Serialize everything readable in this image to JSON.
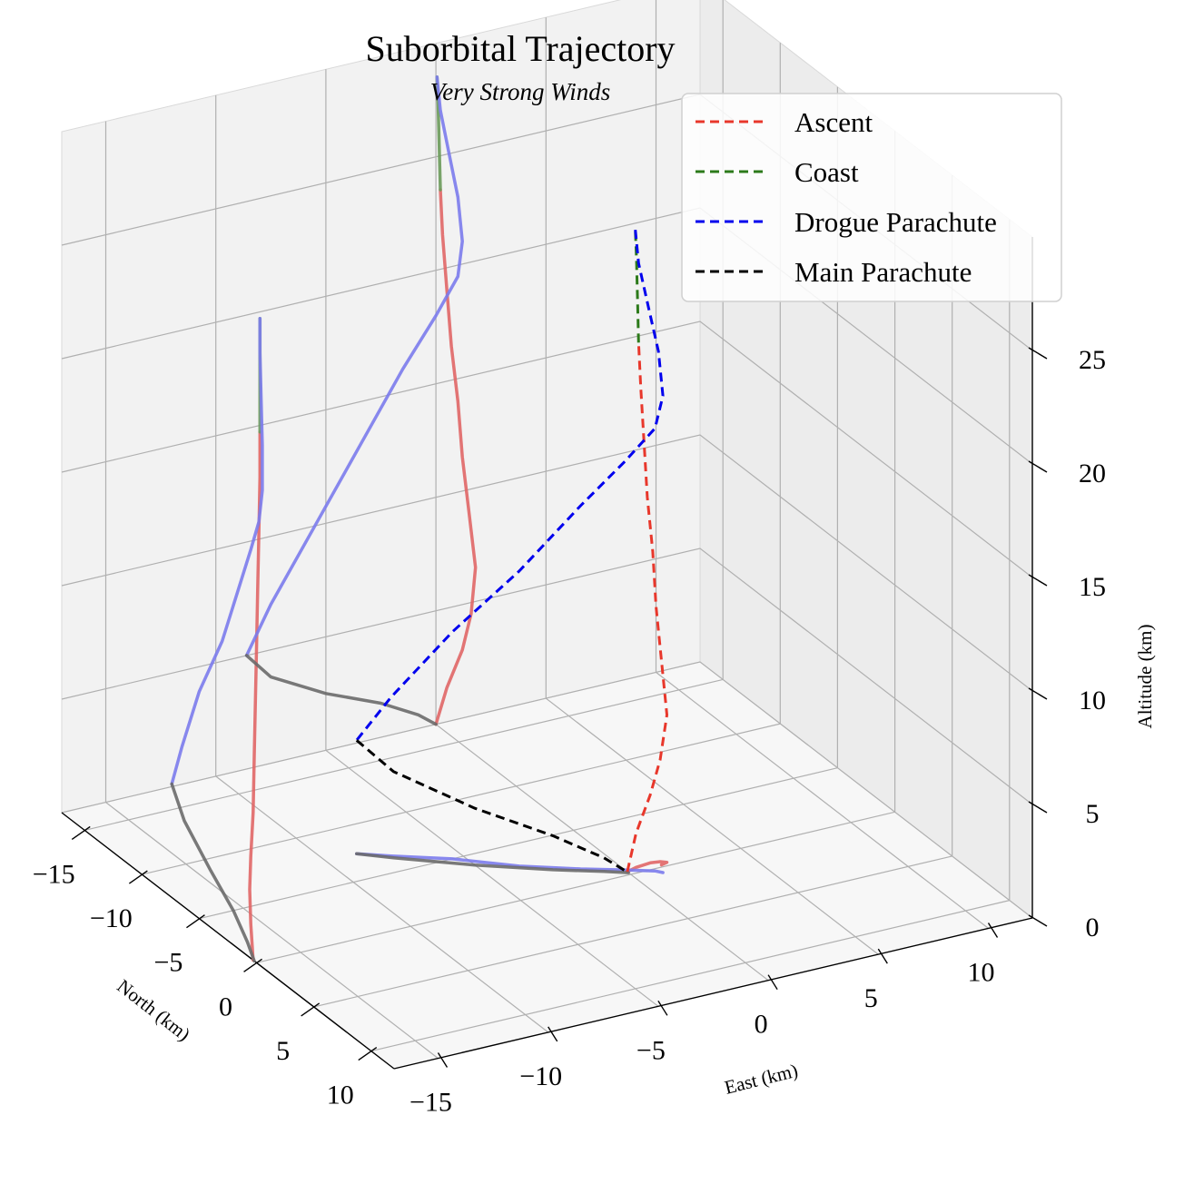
{
  "chart_data": {
    "type": "line",
    "title": "Suborbital Trajectory",
    "subtitle": "Very Strong Winds",
    "xlabel": "East (km)",
    "ylabel": "North (km)",
    "zlabel": "Altitude (km)",
    "xlim": [
      -17,
      12
    ],
    "ylim": [
      -17,
      12
    ],
    "zlim": [
      0,
      30
    ],
    "x_ticks": [
      "−15",
      "−10",
      "−5",
      "0",
      "5",
      "10"
    ],
    "y_ticks": [
      "−15",
      "−10",
      "−5",
      "0",
      "5",
      "10"
    ],
    "z_ticks": [
      "0",
      "5",
      "10",
      "15",
      "20",
      "25"
    ],
    "grid": true,
    "legend_position": "top-right",
    "series": [
      {
        "name": "Ascent",
        "color": "#e8372b",
        "points": [
          [
            0.0,
            -0.3,
            0.0
          ],
          [
            0.5,
            -0.5,
            1.5
          ],
          [
            1.2,
            -0.6,
            3.0
          ],
          [
            1.6,
            -0.5,
            4.5
          ],
          [
            1.8,
            -0.3,
            6.5
          ],
          [
            1.5,
            -0.2,
            9.0
          ],
          [
            1.2,
            -0.1,
            11.5
          ],
          [
            1.0,
            0.0,
            14.0
          ],
          [
            0.7,
            0.1,
            16.5
          ],
          [
            0.5,
            0.2,
            19.0
          ],
          [
            0.3,
            0.3,
            21.5
          ],
          [
            0.2,
            0.3,
            23.5
          ]
        ]
      },
      {
        "name": "Coast",
        "color": "#2c7a1a",
        "points": [
          [
            0.2,
            0.3,
            23.5
          ],
          [
            0.15,
            0.3,
            25.5
          ],
          [
            0.1,
            0.3,
            27.3
          ],
          [
            0.05,
            0.3,
            28.5
          ]
        ]
      },
      {
        "name": "Drogue Parachute",
        "color": "#0000ee",
        "points": [
          [
            0.05,
            0.3,
            28.5
          ],
          [
            0.2,
            0.3,
            27.0
          ],
          [
            0.6,
            0.4,
            25.0
          ],
          [
            1.0,
            0.5,
            23.0
          ],
          [
            1.2,
            0.5,
            21.0
          ],
          [
            1.0,
            0.2,
            19.5
          ],
          [
            0.0,
            -0.5,
            18.0
          ],
          [
            -1.5,
            -1.5,
            16.0
          ],
          [
            -3.5,
            -3.0,
            13.0
          ],
          [
            -5.5,
            -5.0,
            10.0
          ],
          [
            -7.5,
            -6.5,
            7.0
          ],
          [
            -8.6,
            -7.4,
            5.0
          ]
        ]
      },
      {
        "name": "Main Parachute",
        "color": "#000000",
        "points": [
          [
            -8.6,
            -7.4,
            5.0
          ],
          [
            -7.5,
            -6.3,
            3.8
          ],
          [
            -5.0,
            -4.0,
            2.5
          ],
          [
            -2.5,
            -2.0,
            1.5
          ],
          [
            -0.8,
            -0.8,
            0.6
          ],
          [
            0.0,
            -0.2,
            0.0
          ]
        ]
      }
    ],
    "projections": [
      {
        "plane": "x=-17",
        "segments": [
          {
            "phase": "Ascent",
            "color": "#e06666",
            "points": [
              [
                -0.3,
                0.0
              ],
              [
                -0.5,
                1.5
              ],
              [
                -0.6,
                3.0
              ],
              [
                -0.5,
                4.5
              ],
              [
                -0.3,
                6.5
              ],
              [
                -0.2,
                9.0
              ],
              [
                -0.1,
                11.5
              ],
              [
                0.0,
                14.0
              ],
              [
                0.1,
                16.5
              ],
              [
                0.2,
                19.0
              ],
              [
                0.3,
                21.5
              ],
              [
                0.3,
                23.5
              ]
            ]
          },
          {
            "phase": "Coast",
            "color": "#6a9a5a",
            "points": [
              [
                0.3,
                23.5
              ],
              [
                0.3,
                25.5
              ],
              [
                0.3,
                27.3
              ],
              [
                0.3,
                28.5
              ]
            ]
          },
          {
            "phase": "Drogue Parachute",
            "color": "#7b7bec",
            "points": [
              [
                0.3,
                28.5
              ],
              [
                0.3,
                27.0
              ],
              [
                0.4,
                25.0
              ],
              [
                0.5,
                23.0
              ],
              [
                0.5,
                21.0
              ],
              [
                0.2,
                19.5
              ],
              [
                -0.5,
                18.0
              ],
              [
                -1.5,
                16.0
              ],
              [
                -3.0,
                13.0
              ],
              [
                -5.0,
                10.0
              ],
              [
                -6.5,
                7.0
              ],
              [
                -7.4,
                5.0
              ]
            ]
          },
          {
            "phase": "Main Parachute",
            "color": "#6a6a6a",
            "points": [
              [
                -7.4,
                5.0
              ],
              [
                -6.3,
                3.8
              ],
              [
                -4.0,
                2.5
              ],
              [
                -2.0,
                1.5
              ],
              [
                -0.8,
                0.6
              ],
              [
                -0.2,
                0.0
              ]
            ]
          }
        ]
      },
      {
        "plane": "y=12",
        "segments": [
          {
            "phase": "Ascent",
            "color": "#e06666",
            "points": [
              [
                0.0,
                0.0
              ],
              [
                0.5,
                1.5
              ],
              [
                1.2,
                3.0
              ],
              [
                1.6,
                4.5
              ],
              [
                1.8,
                6.5
              ],
              [
                1.5,
                9.0
              ],
              [
                1.2,
                11.5
              ],
              [
                1.0,
                14.0
              ],
              [
                0.7,
                16.5
              ],
              [
                0.5,
                19.0
              ],
              [
                0.3,
                21.5
              ],
              [
                0.2,
                23.5
              ]
            ]
          },
          {
            "phase": "Coast",
            "color": "#6a9a5a",
            "points": [
              [
                0.2,
                23.5
              ],
              [
                0.15,
                25.5
              ],
              [
                0.1,
                27.3
              ],
              [
                0.05,
                28.5
              ]
            ]
          },
          {
            "phase": "Drogue Parachute",
            "color": "#7b7bec",
            "points": [
              [
                0.05,
                28.5
              ],
              [
                0.2,
                27.0
              ],
              [
                0.6,
                25.0
              ],
              [
                1.0,
                23.0
              ],
              [
                1.2,
                21.0
              ],
              [
                1.0,
                19.5
              ],
              [
                0.0,
                18.0
              ],
              [
                -1.5,
                16.0
              ],
              [
                -3.5,
                13.0
              ],
              [
                -5.5,
                10.0
              ],
              [
                -7.5,
                7.0
              ],
              [
                -8.6,
                5.0
              ]
            ]
          },
          {
            "phase": "Main Parachute",
            "color": "#6a6a6a",
            "points": [
              [
                -8.6,
                5.0
              ],
              [
                -7.5,
                3.8
              ],
              [
                -5.0,
                2.5
              ],
              [
                -2.5,
                1.5
              ],
              [
                -0.8,
                0.6
              ],
              [
                0.0,
                0.0
              ]
            ]
          }
        ]
      },
      {
        "plane": "z=0",
        "segments": [
          {
            "phase": "Ascent",
            "color": "#e06666",
            "points": [
              [
                0.0,
                -0.3
              ],
              [
                0.5,
                -0.5
              ],
              [
                1.2,
                -0.6
              ],
              [
                1.6,
                -0.5
              ],
              [
                1.8,
                -0.3
              ],
              [
                1.5,
                -0.2
              ]
            ]
          },
          {
            "phase": "Drogue Parachute",
            "color": "#7b7bec",
            "points": [
              [
                1.2,
                0.5
              ],
              [
                1.0,
                0.2
              ],
              [
                0.0,
                -0.5
              ],
              [
                -1.5,
                -1.5
              ],
              [
                -3.5,
                -3.0
              ],
              [
                -5.5,
                -5.0
              ],
              [
                -7.5,
                -6.5
              ],
              [
                -8.6,
                -7.4
              ]
            ]
          },
          {
            "phase": "Main Parachute",
            "color": "#6a6a6a",
            "points": [
              [
                -8.6,
                -7.4
              ],
              [
                -7.5,
                -6.3
              ],
              [
                -5.0,
                -4.0
              ],
              [
                -2.5,
                -2.0
              ],
              [
                -0.8,
                -0.8
              ],
              [
                0.0,
                -0.2
              ]
            ]
          }
        ]
      }
    ]
  }
}
